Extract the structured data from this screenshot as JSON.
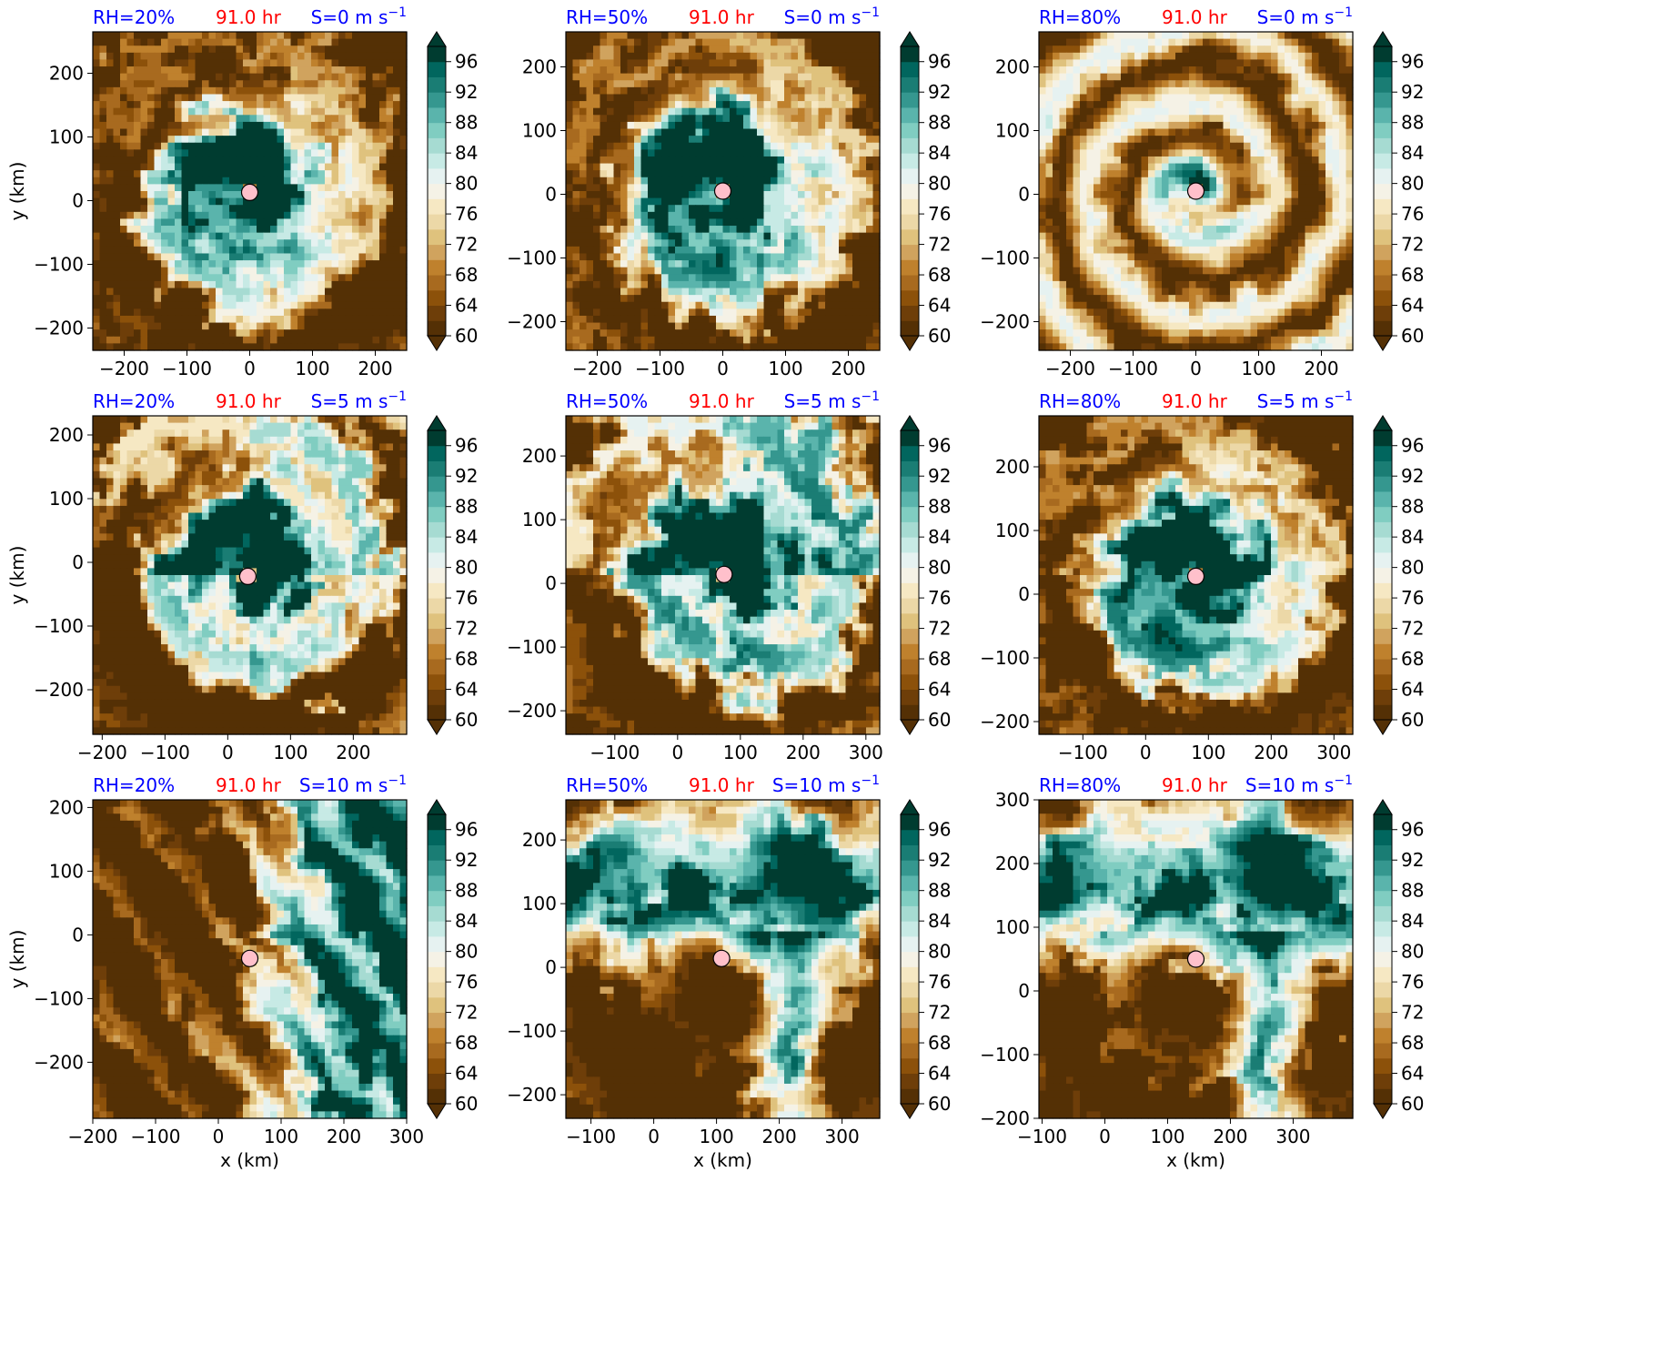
{
  "figure": {
    "colors": {
      "rh_label": "#0000ff",
      "time_label": "#ff0000",
      "shear_label": "#0000ff",
      "center_marker_fill": "#ffc0cb",
      "center_marker_edge": "#000000",
      "colormap": [
        "#543005",
        "#6e3e09",
        "#8c510a",
        "#a86a1f",
        "#bf812d",
        "#d0a35e",
        "#dfc27d",
        "#ecd8a7",
        "#f6e8c3",
        "#f5f2e6",
        "#e6f2f1",
        "#c7eae5",
        "#a6dbd2",
        "#80cdc1",
        "#5ab4ac",
        "#35978f",
        "#1a7d74",
        "#01665e",
        "#003c30"
      ]
    },
    "colorbar": {
      "ticks": [
        "60",
        "64",
        "68",
        "72",
        "76",
        "80",
        "84",
        "88",
        "92",
        "96"
      ],
      "levels": [
        60,
        62,
        64,
        66,
        68,
        70,
        72,
        74,
        76,
        78,
        80,
        82,
        84,
        86,
        88,
        90,
        92,
        94,
        96,
        98
      ],
      "extend": "both"
    }
  },
  "chart_data": [
    {
      "type": "heatmap",
      "row": 0,
      "col": 0,
      "rh": "RH=20%",
      "time": "91.0 hr",
      "shear": "S=0 m s",
      "shear_sup": "−1",
      "xlim": [
        -250,
        250
      ],
      "ylim": [
        -235,
        265
      ],
      "xticks": [
        "−200",
        "−100",
        "0",
        "100",
        "200"
      ],
      "yticks": [
        "−200",
        "−100",
        "0",
        "100",
        "200"
      ],
      "xlabel": "",
      "ylabel": "y (km)",
      "center": [
        0,
        13
      ],
      "pattern": "spiral",
      "moisture_radius": 155
    },
    {
      "type": "heatmap",
      "row": 0,
      "col": 1,
      "rh": "RH=50%",
      "time": "91.0 hr",
      "shear": "S=0 m s",
      "shear_sup": "−1",
      "xlim": [
        -250,
        250
      ],
      "ylim": [
        -245,
        255
      ],
      "xticks": [
        "−200",
        "−100",
        "0",
        "100",
        "200"
      ],
      "yticks": [
        "−200",
        "−100",
        "0",
        "100",
        "200"
      ],
      "xlabel": "",
      "ylabel": "",
      "center": [
        0,
        5
      ],
      "pattern": "spiral",
      "moisture_radius": 170
    },
    {
      "type": "heatmap",
      "row": 0,
      "col": 2,
      "rh": "RH=80%",
      "time": "91.0 hr",
      "shear": "S=0 m s",
      "shear_sup": "−1",
      "xlim": [
        -250,
        250
      ],
      "ylim": [
        -245,
        255
      ],
      "xticks": [
        "−200",
        "−100",
        "0",
        "100",
        "200"
      ],
      "yticks": [
        "−200",
        "−100",
        "0",
        "100",
        "200"
      ],
      "xlabel": "",
      "ylabel": "",
      "center": [
        0,
        5
      ],
      "pattern": "rings",
      "moisture_radius": 90
    },
    {
      "type": "heatmap",
      "row": 1,
      "col": 0,
      "rh": "RH=20%",
      "time": "91.0 hr",
      "shear": "S=5 m s",
      "shear_sup": "−1",
      "xlim": [
        -215,
        285
      ],
      "ylim": [
        -270,
        230
      ],
      "xticks": [
        "−200",
        "−100",
        "0",
        "100",
        "200"
      ],
      "yticks": [
        "−200",
        "−100",
        "0",
        "100",
        "200"
      ],
      "xlabel": "",
      "ylabel": "y (km)",
      "center": [
        32,
        -22
      ],
      "pattern": "sheared",
      "moisture_radius": 150
    },
    {
      "type": "heatmap",
      "row": 1,
      "col": 1,
      "rh": "RH=50%",
      "time": "91.0 hr",
      "shear": "S=5 m s",
      "shear_sup": "−1",
      "xlim": [
        -178,
        322
      ],
      "ylim": [
        -237,
        263
      ],
      "xticks": [
        "−100",
        "0",
        "100",
        "200",
        "300"
      ],
      "yticks": [
        "−200",
        "−100",
        "0",
        "100",
        "200"
      ],
      "xlabel": "",
      "ylabel": "",
      "center": [
        74,
        14
      ],
      "pattern": "sheared",
      "moisture_radius": 175
    },
    {
      "type": "heatmap",
      "row": 1,
      "col": 2,
      "rh": "RH=80%",
      "time": "91.0 hr",
      "shear": "S=5 m s",
      "shear_sup": "−1",
      "xlim": [
        -170,
        330
      ],
      "ylim": [
        -220,
        280
      ],
      "xticks": [
        "−100",
        "0",
        "100",
        "200",
        "300"
      ],
      "yticks": [
        "−200",
        "−100",
        "0",
        "100",
        "200"
      ],
      "xlabel": "",
      "ylabel": "",
      "center": [
        80,
        28
      ],
      "pattern": "spiral",
      "moisture_radius": 170
    },
    {
      "type": "heatmap",
      "row": 2,
      "col": 0,
      "rh": "RH=20%",
      "time": "91.0 hr",
      "shear": "S=10 m s",
      "shear_sup": "−1",
      "xlim": [
        -200,
        300
      ],
      "ylim": [
        -288,
        212
      ],
      "xticks": [
        "−200",
        "−100",
        "0",
        "100",
        "200",
        "300"
      ],
      "yticks": [
        "−200",
        "−100",
        "0",
        "100",
        "200"
      ],
      "xlabel": "x (km)",
      "ylabel": "y (km)",
      "center": [
        50,
        -37
      ],
      "pattern": "east",
      "moisture_radius": 160
    },
    {
      "type": "heatmap",
      "row": 2,
      "col": 1,
      "rh": "RH=50%",
      "time": "91.0 hr",
      "shear": "S=10 m s",
      "shear_sup": "−1",
      "xlim": [
        -140,
        360
      ],
      "ylim": [
        -237,
        263
      ],
      "xticks": [
        "−100",
        "0",
        "100",
        "200",
        "300"
      ],
      "yticks": [
        "−200",
        "−100",
        "0",
        "100",
        "200"
      ],
      "xlabel": "x (km)",
      "ylabel": "",
      "center": [
        108,
        14
      ],
      "pattern": "north",
      "moisture_radius": 170
    },
    {
      "type": "heatmap",
      "row": 2,
      "col": 2,
      "rh": "RH=80%",
      "time": "91.0 hr",
      "shear": "S=10 m s",
      "shear_sup": "−1",
      "xlim": [
        -105,
        395
      ],
      "ylim": [
        -200,
        300
      ],
      "xticks": [
        "−100",
        "0",
        "100",
        "200",
        "300"
      ],
      "yticks": [
        "−200",
        "−100",
        "0",
        "100",
        "200",
        "300"
      ],
      "xlabel": "x (km)",
      "ylabel": "",
      "center": [
        145,
        50
      ],
      "pattern": "north",
      "moisture_radius": 170
    }
  ]
}
